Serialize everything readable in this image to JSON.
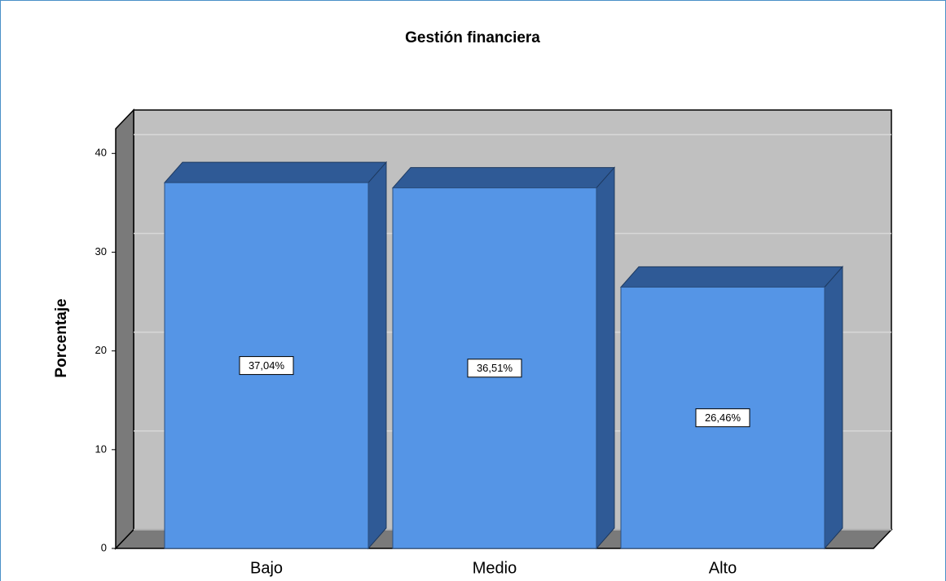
{
  "chart_data": {
    "type": "bar3d",
    "title": "Gestión financiera",
    "y_label": "Porcentaje",
    "categories": [
      "Bajo",
      "Medio",
      "Alto"
    ],
    "values": [
      37.04,
      36.51,
      26.46
    ],
    "value_labels": [
      "37,04%",
      "36,51%",
      "26,46%"
    ],
    "color": "#5595e6",
    "ylim": [
      0,
      42.5
    ],
    "yticks": [
      0,
      10,
      20,
      30,
      40
    ],
    "grid": true
  }
}
